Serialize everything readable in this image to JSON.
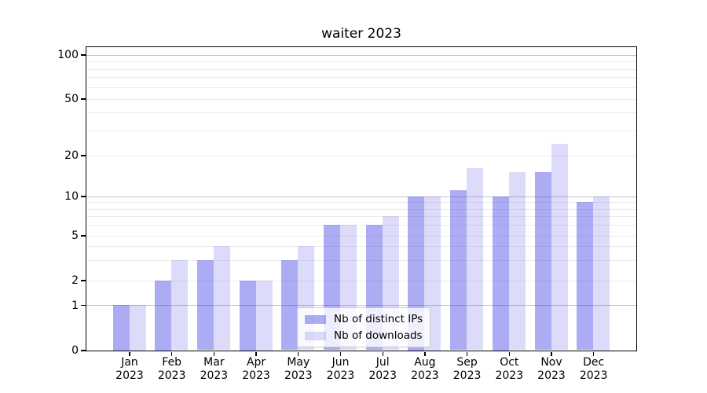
{
  "title": "waiter 2023",
  "chart_data": {
    "type": "bar",
    "title": "waiter 2023",
    "categories": [
      "Jan 2023",
      "Feb 2023",
      "Mar 2023",
      "Apr 2023",
      "May 2023",
      "Jun 2023",
      "Jul 2023",
      "Aug 2023",
      "Sep 2023",
      "Oct 2023",
      "Nov 2023",
      "Dec 2023"
    ],
    "series": [
      {
        "name": "Nb of distinct IPs",
        "color": "rgba(70,70,230,0.45)",
        "values": [
          1,
          2,
          3,
          2,
          3,
          6,
          6,
          10,
          11,
          10,
          15,
          9
        ]
      },
      {
        "name": "Nb of downloads",
        "color": "rgba(70,70,230,0.19)",
        "values": [
          1,
          3,
          4,
          2,
          4,
          6,
          7,
          10,
          16,
          15,
          24,
          10
        ]
      }
    ],
    "xlabel": "",
    "ylabel": "",
    "yscale": "symlog",
    "yticks": [
      0,
      1,
      2,
      5,
      10,
      20,
      50,
      100
    ],
    "ylim": [
      0,
      110
    ],
    "grid": "horizontal major+minor",
    "major_grid_values": [
      1,
      10,
      100
    ],
    "minor_grid_values": [
      2,
      3,
      4,
      5,
      6,
      7,
      8,
      9,
      20,
      30,
      40,
      50,
      60,
      70,
      80,
      90
    ],
    "legend_position": "lower center inside plot"
  },
  "colors": {
    "background": "#ffffff",
    "spine": "#000000",
    "major_grid": "#c4c4c4",
    "minor_grid": "#ececec",
    "text": "#000000",
    "legend_border": "#c9c9c9",
    "legend_background": "rgba(255,255,255,0.8)"
  }
}
